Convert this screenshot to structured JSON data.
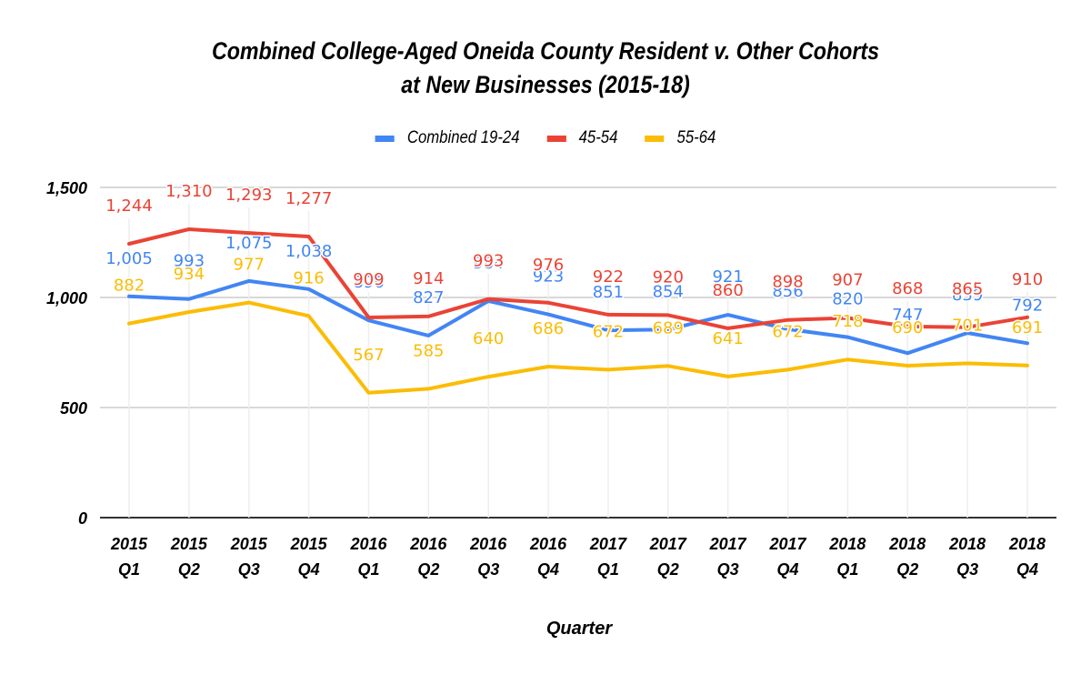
{
  "chart_data": {
    "type": "line",
    "title_line1": "Combined College-Aged Oneida County Resident v. Other Cohorts",
    "title_line2": "at New Businesses (2015-18)",
    "xlabel": "Quarter",
    "ylabel": "",
    "ylim": [
      0,
      1500
    ],
    "yticks": [
      0,
      500,
      1000,
      1500
    ],
    "ytick_labels": [
      "0",
      "500",
      "1,000",
      "1,500"
    ],
    "grid": true,
    "legend_position": "top",
    "categories": [
      [
        "2015",
        "Q1"
      ],
      [
        "2015",
        "Q2"
      ],
      [
        "2015",
        "Q3"
      ],
      [
        "2015",
        "Q4"
      ],
      [
        "2016",
        "Q1"
      ],
      [
        "2016",
        "Q2"
      ],
      [
        "2016",
        "Q3"
      ],
      [
        "2016",
        "Q4"
      ],
      [
        "2017",
        "Q1"
      ],
      [
        "2017",
        "Q2"
      ],
      [
        "2017",
        "Q3"
      ],
      [
        "2017",
        "Q4"
      ],
      [
        "2018",
        "Q1"
      ],
      [
        "2018",
        "Q2"
      ],
      [
        "2018",
        "Q3"
      ],
      [
        "2018",
        "Q4"
      ]
    ],
    "series": [
      {
        "name": "Combined 19-24",
        "color": "#4285F4",
        "values": [
          1005,
          993,
          1075,
          1038,
          896,
          827,
          984,
          923,
          851,
          854,
          921,
          856,
          820,
          747,
          839,
          792
        ]
      },
      {
        "name": "45-54",
        "color": "#EA4335",
        "values": [
          1244,
          1310,
          1293,
          1277,
          909,
          914,
          993,
          976,
          922,
          920,
          860,
          898,
          907,
          868,
          865,
          910
        ]
      },
      {
        "name": "55-64",
        "color": "#FBBC04",
        "values": [
          882,
          934,
          977,
          916,
          567,
          585,
          640,
          686,
          672,
          689,
          641,
          672,
          718,
          690,
          701,
          691
        ]
      }
    ]
  }
}
